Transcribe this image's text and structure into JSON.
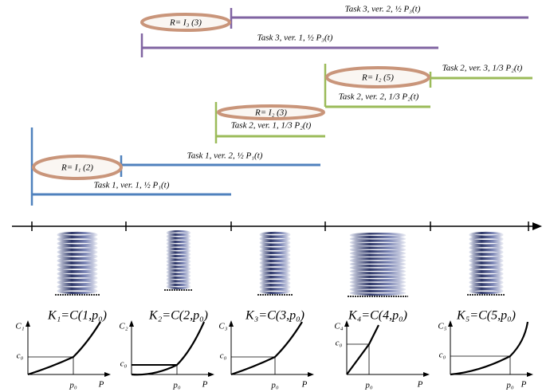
{
  "bars": [
    {
      "label": "Task 3, ver. 2, ½ P₃(t)"
    },
    {
      "label": "Task 3, ver. 1, ½ P₃(t)"
    },
    {
      "label": "Task 2, ver. 3, 1/3 P₂(t)"
    },
    {
      "label": "Task 2, ver. 2, 1/3 P₂(t)"
    },
    {
      "label": "Task 2, ver. 1, 1/3 P₂(t)"
    },
    {
      "label": "Task 1, ver. 2, ½ P₁(t)"
    },
    {
      "label": "Task 1, ver. 1, ½ P₁(t)"
    }
  ],
  "switches": [
    {
      "label": "R= I₃ (3)"
    },
    {
      "label": "R= I₂ (5)"
    },
    {
      "label": "R= I₂ (3)"
    },
    {
      "label": "R= I₁ (2)"
    }
  ],
  "springs": [
    {
      "label": "K₁=C(1,p₀)"
    },
    {
      "label": "K₂=C(2,p₀)"
    },
    {
      "label": "K₃=C(3,p₀)"
    },
    {
      "label": "K₄=C(4,p₀)"
    },
    {
      "label": "K₅=C(5,p₀)"
    }
  ],
  "plots": [
    {
      "y_label": "C₁",
      "c_label": "c₀",
      "p_label": "p₀",
      "x_label": "P"
    },
    {
      "y_label": "C₂",
      "c_label": "c₀",
      "p_label": "p₀",
      "x_label": "P"
    },
    {
      "y_label": "C₃",
      "c_label": "c₀",
      "p_label": "p₀",
      "x_label": "P"
    },
    {
      "y_label": "C₄",
      "c_label": "c₀",
      "p_label": "p₀",
      "x_label": "P"
    },
    {
      "y_label": "C₅",
      "c_label": "c₀",
      "p_label": "p₀",
      "x_label": "P"
    }
  ]
}
